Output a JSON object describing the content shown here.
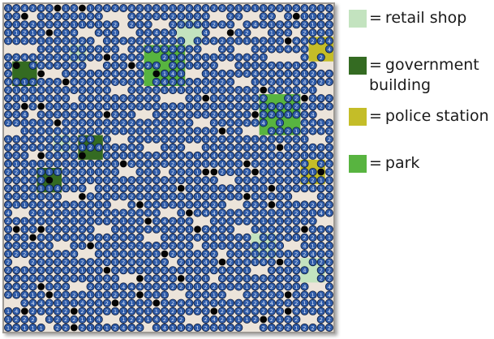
{
  "board": {
    "grid_cols": 40,
    "grid_rows": 40,
    "colors": {
      "background": "#ece4da",
      "agent_fill": "#2e5ba8",
      "agent_outline": "#0c1a3a",
      "agent_text": "#e6ecf7",
      "obstacle": "#050505"
    },
    "zones": [
      {
        "type": "retail_shop",
        "col": 21,
        "row": 2,
        "w": 3,
        "h": 3
      },
      {
        "type": "retail_shop",
        "col": 8,
        "row": 5,
        "w": 2,
        "h": 2
      },
      {
        "type": "park",
        "col": 17,
        "row": 5,
        "w": 5,
        "h": 5
      },
      {
        "type": "police_station",
        "col": 37,
        "row": 4,
        "w": 3,
        "h": 3
      },
      {
        "type": "government_building",
        "col": 1,
        "row": 7,
        "w": 3,
        "h": 3
      },
      {
        "type": "park",
        "col": 31,
        "row": 11,
        "w": 5,
        "h": 5
      },
      {
        "type": "government_building",
        "col": 9,
        "row": 16,
        "w": 3,
        "h": 3
      },
      {
        "type": "retail_shop",
        "col": 6,
        "row": 16,
        "w": 2,
        "h": 2
      },
      {
        "type": "police_station",
        "col": 36,
        "row": 19,
        "w": 3,
        "h": 3
      },
      {
        "type": "government_building",
        "col": 4,
        "row": 20,
        "w": 3,
        "h": 3
      },
      {
        "type": "retail_shop",
        "col": 30,
        "row": 28,
        "w": 3,
        "h": 3
      },
      {
        "type": "retail_shop",
        "col": 36,
        "row": 31,
        "w": 3,
        "h": 3
      }
    ],
    "obstacles": [
      [
        6,
        0
      ],
      [
        9,
        0
      ],
      [
        2,
        1
      ],
      [
        35,
        1
      ],
      [
        5,
        3
      ],
      [
        27,
        3
      ],
      [
        34,
        4
      ],
      [
        12,
        6
      ],
      [
        15,
        7
      ],
      [
        1,
        7
      ],
      [
        4,
        8
      ],
      [
        18,
        8
      ],
      [
        7,
        9
      ],
      [
        31,
        10
      ],
      [
        2,
        12
      ],
      [
        4,
        12
      ],
      [
        24,
        11
      ],
      [
        36,
        11
      ],
      [
        40,
        11
      ],
      [
        30,
        13
      ],
      [
        12,
        13
      ],
      [
        6,
        14
      ],
      [
        26,
        15
      ],
      [
        33,
        17
      ],
      [
        9,
        18
      ],
      [
        4,
        18
      ],
      [
        29,
        19
      ],
      [
        24,
        20
      ],
      [
        30,
        20
      ],
      [
        38,
        20
      ],
      [
        14,
        19
      ],
      [
        5,
        21
      ],
      [
        21,
        22
      ],
      [
        32,
        22
      ],
      [
        25,
        20
      ],
      [
        9,
        23
      ],
      [
        16,
        24
      ],
      [
        17,
        26
      ],
      [
        22,
        25
      ],
      [
        29,
        23
      ],
      [
        32,
        24
      ],
      [
        1,
        27
      ],
      [
        4,
        27
      ],
      [
        23,
        27
      ],
      [
        36,
        27
      ],
      [
        3,
        28
      ],
      [
        10,
        29
      ],
      [
        26,
        31
      ],
      [
        33,
        31
      ],
      [
        19,
        30
      ],
      [
        12,
        32
      ],
      [
        4,
        34
      ],
      [
        16,
        33
      ],
      [
        21,
        33
      ],
      [
        5,
        35
      ],
      [
        34,
        35
      ],
      [
        13,
        36
      ],
      [
        18,
        36
      ],
      [
        2,
        37
      ],
      [
        8,
        37
      ],
      [
        25,
        37
      ],
      [
        34,
        37
      ],
      [
        8,
        39
      ],
      [
        16,
        35
      ],
      [
        31,
        38
      ]
    ],
    "empty_cells": [
      [
        3,
        1
      ],
      [
        12,
        1
      ],
      [
        13,
        1
      ],
      [
        14,
        1
      ],
      [
        25,
        1
      ],
      [
        26,
        1
      ],
      [
        29,
        1
      ],
      [
        30,
        1
      ],
      [
        33,
        1
      ],
      [
        14,
        2
      ],
      [
        18,
        2
      ],
      [
        19,
        2
      ],
      [
        28,
        2
      ],
      [
        9,
        3
      ],
      [
        10,
        3
      ],
      [
        14,
        3
      ],
      [
        15,
        3
      ],
      [
        25,
        3
      ],
      [
        26,
        3
      ],
      [
        30,
        3
      ],
      [
        31,
        3
      ],
      [
        35,
        3
      ],
      [
        0,
        5
      ],
      [
        1,
        5
      ],
      [
        2,
        5
      ],
      [
        3,
        5
      ],
      [
        11,
        4
      ],
      [
        14,
        5
      ],
      [
        24,
        5
      ],
      [
        25,
        5
      ],
      [
        28,
        5
      ],
      [
        29,
        5
      ],
      [
        32,
        6
      ],
      [
        33,
        6
      ],
      [
        34,
        6
      ],
      [
        35,
        6
      ],
      [
        10,
        7
      ],
      [
        11,
        7
      ],
      [
        26,
        7
      ],
      [
        27,
        7
      ],
      [
        38,
        7
      ],
      [
        39,
        7
      ],
      [
        5,
        8
      ],
      [
        6,
        8
      ],
      [
        22,
        8
      ],
      [
        23,
        8
      ],
      [
        28,
        9
      ],
      [
        29,
        9
      ],
      [
        13,
        10
      ],
      [
        14,
        10
      ],
      [
        38,
        10
      ],
      [
        39,
        10
      ],
      [
        8,
        11
      ],
      [
        19,
        11
      ],
      [
        20,
        11
      ],
      [
        21,
        11
      ],
      [
        3,
        13
      ],
      [
        16,
        13
      ],
      [
        17,
        13
      ],
      [
        38,
        13
      ],
      [
        39,
        13
      ],
      [
        23,
        14
      ],
      [
        24,
        14
      ],
      [
        0,
        15
      ],
      [
        1,
        15
      ],
      [
        29,
        15
      ],
      [
        30,
        15
      ],
      [
        13,
        16
      ],
      [
        14,
        16
      ],
      [
        37,
        16
      ],
      [
        38,
        16
      ],
      [
        17,
        17
      ],
      [
        18,
        17
      ],
      [
        22,
        17
      ],
      [
        23,
        17
      ],
      [
        3,
        18
      ],
      [
        14,
        20
      ],
      [
        15,
        20
      ],
      [
        26,
        21
      ],
      [
        27,
        21
      ],
      [
        19,
        20
      ],
      [
        7,
        23
      ],
      [
        8,
        23
      ],
      [
        10,
        22
      ],
      [
        35,
        23
      ],
      [
        36,
        23
      ],
      [
        37,
        23
      ],
      [
        13,
        24
      ],
      [
        14,
        24
      ],
      [
        27,
        24
      ],
      [
        28,
        24
      ],
      [
        1,
        25
      ],
      [
        2,
        25
      ],
      [
        19,
        25
      ],
      [
        20,
        25
      ],
      [
        23,
        26
      ],
      [
        24,
        26
      ],
      [
        38,
        26
      ],
      [
        39,
        26
      ],
      [
        11,
        27
      ],
      [
        12,
        27
      ],
      [
        28,
        27
      ],
      [
        29,
        27
      ],
      [
        17,
        28
      ],
      [
        18,
        28
      ],
      [
        6,
        29
      ],
      [
        7,
        29
      ],
      [
        23,
        29
      ],
      [
        34,
        29
      ],
      [
        35,
        29
      ],
      [
        9,
        30
      ],
      [
        10,
        30
      ],
      [
        26,
        30
      ],
      [
        1,
        31
      ],
      [
        2,
        31
      ],
      [
        20,
        31
      ],
      [
        30,
        32
      ],
      [
        31,
        32
      ],
      [
        14,
        33
      ],
      [
        15,
        33
      ],
      [
        25,
        33
      ],
      [
        8,
        34
      ],
      [
        9,
        34
      ],
      [
        37,
        34
      ],
      [
        38,
        34
      ],
      [
        20,
        35
      ],
      [
        21,
        35
      ],
      [
        27,
        35
      ],
      [
        28,
        35
      ],
      [
        0,
        36
      ],
      [
        1,
        36
      ],
      [
        12,
        38
      ],
      [
        13,
        38
      ],
      [
        22,
        38
      ],
      [
        23,
        38
      ],
      [
        36,
        38
      ],
      [
        37,
        38
      ],
      [
        4,
        38
      ],
      [
        5,
        39
      ],
      [
        17,
        39
      ],
      [
        29,
        39
      ],
      [
        30,
        39
      ]
    ]
  },
  "legend": {
    "equals": "=",
    "items": [
      {
        "label": "retail shop",
        "color": "#c3e3bf"
      },
      {
        "label": "government building",
        "line1": "government",
        "line2": "building",
        "color": "#346b22"
      },
      {
        "label": "police station",
        "color": "#c4bd28"
      },
      {
        "label": "park",
        "color": "#58b440"
      }
    ]
  }
}
